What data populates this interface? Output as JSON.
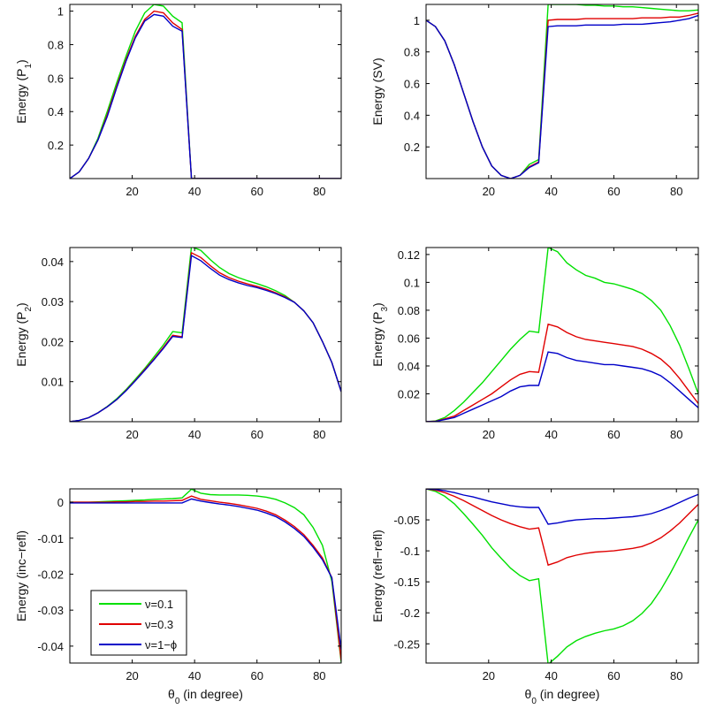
{
  "legend": {
    "placement": "lower-left of bottom-left panel",
    "entries": [
      {
        "label": "ν=0.1",
        "color": "#00e000"
      },
      {
        "label": "ν=0.3",
        "color": "#e00000"
      },
      {
        "label": "ν=1−ϕ",
        "color": "#0000c8"
      }
    ]
  },
  "chart_data": [
    {
      "type": "line",
      "ylabel": {
        "text": "Energy (P",
        "sub": "1",
        "end": ")"
      },
      "xlabel": null,
      "xlim": [
        0,
        87
      ],
      "ylim": [
        0,
        1.04
      ],
      "xticks": [
        20,
        40,
        60,
        80
      ],
      "yticks": [
        0.2,
        0.4,
        0.6,
        0.8,
        1
      ],
      "yticklabels": [
        "0.2",
        "0.4",
        "0.6",
        "0.8",
        "1"
      ],
      "x": [
        0,
        3,
        6,
        9,
        12,
        15,
        18,
        21,
        24,
        27,
        30,
        33,
        36,
        39,
        42,
        45,
        48,
        51,
        54,
        57,
        60,
        63,
        66,
        69,
        72,
        75,
        78,
        81,
        84,
        87
      ],
      "series": [
        {
          "name": "ν=0.1",
          "color": "#00e000",
          "values": [
            0,
            0.04,
            0.12,
            0.24,
            0.4,
            0.57,
            0.73,
            0.88,
            0.99,
            1.04,
            1.03,
            0.97,
            0.93,
            0,
            0,
            0,
            0,
            0,
            0,
            0,
            0,
            0,
            0,
            0,
            0,
            0,
            0,
            0,
            0,
            0
          ]
        },
        {
          "name": "ν=0.3",
          "color": "#e00000",
          "values": [
            0,
            0.04,
            0.12,
            0.23,
            0.38,
            0.55,
            0.71,
            0.85,
            0.95,
            1.0,
            0.99,
            0.93,
            0.89,
            0,
            0,
            0,
            0,
            0,
            0,
            0,
            0,
            0,
            0,
            0,
            0,
            0,
            0,
            0,
            0,
            0
          ]
        },
        {
          "name": "ν=1−ϕ",
          "color": "#0000c8",
          "values": [
            0,
            0.04,
            0.12,
            0.23,
            0.37,
            0.54,
            0.7,
            0.84,
            0.94,
            0.98,
            0.97,
            0.91,
            0.88,
            0,
            0,
            0,
            0,
            0,
            0,
            0,
            0,
            0,
            0,
            0,
            0,
            0,
            0,
            0,
            0,
            0
          ]
        }
      ]
    },
    {
      "type": "line",
      "ylabel": {
        "text": "Energy (SV)",
        "sub": "",
        "end": ""
      },
      "xlabel": null,
      "xlim": [
        0,
        87
      ],
      "ylim": [
        0,
        1.1
      ],
      "xticks": [
        20,
        40,
        60,
        80
      ],
      "yticks": [
        0.2,
        0.4,
        0.6,
        0.8,
        1
      ],
      "yticklabels": [
        "0.2",
        "0.4",
        "0.6",
        "0.8",
        "1"
      ],
      "x": [
        0,
        3,
        6,
        9,
        12,
        15,
        18,
        21,
        24,
        27,
        30,
        33,
        36,
        39,
        42,
        45,
        48,
        51,
        54,
        57,
        60,
        63,
        66,
        69,
        72,
        75,
        78,
        81,
        84,
        87
      ],
      "series": [
        {
          "name": "ν=0.1",
          "color": "#00e000",
          "values": [
            1.0,
            0.96,
            0.87,
            0.72,
            0.54,
            0.36,
            0.2,
            0.08,
            0.02,
            0.0,
            0.02,
            0.09,
            0.12,
            1.1,
            1.1,
            1.1,
            1.1,
            1.095,
            1.095,
            1.09,
            1.09,
            1.085,
            1.085,
            1.08,
            1.075,
            1.07,
            1.065,
            1.06,
            1.06,
            1.065
          ]
        },
        {
          "name": "ν=0.3",
          "color": "#e00000",
          "values": [
            1.0,
            0.96,
            0.87,
            0.72,
            0.54,
            0.36,
            0.2,
            0.08,
            0.02,
            0.0,
            0.02,
            0.075,
            0.105,
            1.0,
            1.005,
            1.005,
            1.005,
            1.01,
            1.01,
            1.01,
            1.01,
            1.01,
            1.01,
            1.015,
            1.015,
            1.015,
            1.02,
            1.02,
            1.03,
            1.045
          ]
        },
        {
          "name": "ν=1−ϕ",
          "color": "#0000c8",
          "values": [
            1.0,
            0.96,
            0.87,
            0.72,
            0.54,
            0.36,
            0.2,
            0.08,
            0.02,
            0.0,
            0.02,
            0.07,
            0.1,
            0.96,
            0.965,
            0.965,
            0.965,
            0.97,
            0.97,
            0.97,
            0.97,
            0.975,
            0.975,
            0.975,
            0.98,
            0.985,
            0.99,
            1.0,
            1.01,
            1.03
          ]
        }
      ]
    },
    {
      "type": "line",
      "ylabel": {
        "text": "Energy (P",
        "sub": "2",
        "end": ")"
      },
      "xlabel": null,
      "xlim": [
        0,
        87
      ],
      "ylim": [
        0,
        0.0435
      ],
      "xticks": [
        20,
        40,
        60,
        80
      ],
      "yticks": [
        0.01,
        0.02,
        0.03,
        0.04
      ],
      "yticklabels": [
        "0.01",
        "0.02",
        "0.03",
        "0.04"
      ],
      "x": [
        0,
        3,
        6,
        9,
        12,
        15,
        18,
        21,
        24,
        27,
        30,
        33,
        36,
        39,
        42,
        45,
        48,
        51,
        54,
        57,
        60,
        63,
        66,
        69,
        72,
        75,
        78,
        81,
        84,
        87
      ],
      "series": [
        {
          "name": "ν=0.1",
          "color": "#00e000",
          "values": [
            0,
            0.0003,
            0.001,
            0.0022,
            0.0038,
            0.0057,
            0.008,
            0.0106,
            0.0133,
            0.0162,
            0.0192,
            0.0225,
            0.0222,
            0.0437,
            0.0428,
            0.0405,
            0.0385,
            0.037,
            0.036,
            0.0352,
            0.0345,
            0.0337,
            0.0327,
            0.0315,
            0.0298,
            0.0277,
            0.0247,
            0.02,
            0.0148,
            0.0075
          ]
        },
        {
          "name": "ν=0.3",
          "color": "#e00000",
          "values": [
            0,
            0.0003,
            0.001,
            0.0022,
            0.0037,
            0.0055,
            0.0078,
            0.0103,
            0.013,
            0.0157,
            0.0186,
            0.0216,
            0.0212,
            0.0422,
            0.041,
            0.039,
            0.0372,
            0.036,
            0.0351,
            0.0344,
            0.0338,
            0.0331,
            0.0322,
            0.0312,
            0.0298,
            0.0277,
            0.0247,
            0.02,
            0.0148,
            0.0075
          ]
        },
        {
          "name": "ν=1−ϕ",
          "color": "#0000c8",
          "values": [
            0,
            0.0003,
            0.001,
            0.0022,
            0.0037,
            0.0055,
            0.0077,
            0.0102,
            0.0128,
            0.0155,
            0.0183,
            0.0213,
            0.021,
            0.0415,
            0.0402,
            0.0383,
            0.0366,
            0.0355,
            0.0347,
            0.034,
            0.0335,
            0.0328,
            0.032,
            0.031,
            0.0298,
            0.0277,
            0.0247,
            0.02,
            0.0148,
            0.0075
          ]
        }
      ]
    },
    {
      "type": "line",
      "ylabel": {
        "text": "Energy (P",
        "sub": "3",
        "end": ")"
      },
      "xlabel": null,
      "xlim": [
        0,
        87
      ],
      "ylim": [
        0,
        0.125
      ],
      "xticks": [
        20,
        40,
        60,
        80
      ],
      "yticks": [
        0.02,
        0.04,
        0.06,
        0.08,
        0.1,
        0.12
      ],
      "yticklabels": [
        "0.02",
        "0.04",
        "0.06",
        "0.08",
        "0.1",
        "0.12"
      ],
      "x": [
        0,
        3,
        6,
        9,
        12,
        15,
        18,
        21,
        24,
        27,
        30,
        33,
        36,
        39,
        42,
        45,
        48,
        51,
        54,
        57,
        60,
        63,
        66,
        69,
        72,
        75,
        78,
        81,
        84,
        87
      ],
      "series": [
        {
          "name": "ν=0.1",
          "color": "#00e000",
          "values": [
            0,
            0.0005,
            0.003,
            0.008,
            0.014,
            0.021,
            0.028,
            0.036,
            0.044,
            0.052,
            0.059,
            0.065,
            0.064,
            0.125,
            0.122,
            0.114,
            0.109,
            0.105,
            0.103,
            0.1,
            0.099,
            0.097,
            0.095,
            0.092,
            0.087,
            0.08,
            0.069,
            0.055,
            0.038,
            0.02
          ]
        },
        {
          "name": "ν=0.3",
          "color": "#e00000",
          "values": [
            0,
            0.0003,
            0.002,
            0.004,
            0.008,
            0.012,
            0.016,
            0.02,
            0.025,
            0.03,
            0.034,
            0.036,
            0.0355,
            0.07,
            0.068,
            0.064,
            0.061,
            0.059,
            0.058,
            0.057,
            0.056,
            0.055,
            0.054,
            0.052,
            0.049,
            0.045,
            0.039,
            0.031,
            0.022,
            0.013
          ]
        },
        {
          "name": "ν=1−ϕ",
          "color": "#0000c8",
          "values": [
            0,
            0.0002,
            0.0015,
            0.003,
            0.006,
            0.009,
            0.012,
            0.015,
            0.018,
            0.022,
            0.025,
            0.026,
            0.026,
            0.05,
            0.049,
            0.046,
            0.044,
            0.043,
            0.042,
            0.041,
            0.041,
            0.04,
            0.039,
            0.038,
            0.036,
            0.033,
            0.028,
            0.022,
            0.016,
            0.01
          ]
        }
      ]
    },
    {
      "type": "line",
      "ylabel": {
        "text": "Energy (inc−refl)",
        "sub": "",
        "end": ""
      },
      "xlabel": {
        "text": "θ",
        "sub": "0",
        "end": " (in degree)"
      },
      "xlim": [
        0,
        87
      ],
      "ylim": [
        -0.0447,
        0.0037
      ],
      "xticks": [
        20,
        40,
        60,
        80
      ],
      "yticks": [
        -0.04,
        -0.03,
        -0.02,
        -0.01,
        0
      ],
      "yticklabels": [
        "-0.04",
        "-0.03",
        "-0.02",
        "-0.01",
        "0"
      ],
      "x": [
        0,
        3,
        6,
        9,
        12,
        15,
        18,
        21,
        24,
        27,
        30,
        33,
        36,
        39,
        42,
        45,
        48,
        51,
        54,
        57,
        60,
        63,
        66,
        69,
        72,
        75,
        78,
        81,
        84,
        87
      ],
      "series": [
        {
          "name": "ν=0.1",
          "color": "#00e000",
          "values": [
            0,
            0,
            0,
            0.0001,
            0.0002,
            0.0003,
            0.0004,
            0.0005,
            0.0006,
            0.0008,
            0.0009,
            0.001,
            0.0012,
            0.0036,
            0.0025,
            0.0021,
            0.002,
            0.002,
            0.002,
            0.0019,
            0.0017,
            0.0014,
            0.0008,
            -0.0002,
            -0.0015,
            -0.0035,
            -0.007,
            -0.012,
            -0.022,
            -0.0445
          ]
        },
        {
          "name": "ν=0.3",
          "color": "#e00000",
          "values": [
            0,
            0,
            0,
            0,
            0,
            0.0001,
            0.0001,
            0.0002,
            0.0002,
            0.0003,
            0.0003,
            0.0004,
            0.0005,
            0.0017,
            0.0008,
            0.0004,
            0,
            -0.0003,
            -0.0007,
            -0.0012,
            -0.0017,
            -0.0025,
            -0.0035,
            -0.005,
            -0.0068,
            -0.009,
            -0.012,
            -0.0155,
            -0.021,
            -0.044
          ]
        },
        {
          "name": "ν=1−ϕ",
          "color": "#0000c8",
          "values": [
            -0.0002,
            -0.0002,
            -0.0002,
            -0.0002,
            -0.0002,
            -0.0002,
            -0.0002,
            -0.0002,
            -0.0002,
            -0.0002,
            -0.0002,
            -0.0002,
            -0.0002,
            0.0009,
            0.0003,
            -0.0001,
            -0.0005,
            -0.0008,
            -0.0012,
            -0.0017,
            -0.0022,
            -0.003,
            -0.004,
            -0.0055,
            -0.0073,
            -0.0095,
            -0.0125,
            -0.016,
            -0.021,
            -0.041
          ]
        }
      ]
    },
    {
      "type": "line",
      "ylabel": {
        "text": "Energy (refl−refl)",
        "sub": "",
        "end": ""
      },
      "xlabel": {
        "text": "θ",
        "sub": "0",
        "end": " (in degree)"
      },
      "xlim": [
        0,
        87
      ],
      "ylim": [
        -0.281,
        0
      ],
      "xticks": [
        20,
        40,
        60,
        80
      ],
      "yticks": [
        -0.25,
        -0.2,
        -0.15,
        -0.1,
        -0.05
      ],
      "yticklabels": [
        "-0.25",
        "-0.2",
        "-0.15",
        "-0.1",
        "-0.05"
      ],
      "x": [
        0,
        3,
        6,
        9,
        12,
        15,
        18,
        21,
        24,
        27,
        30,
        33,
        36,
        39,
        42,
        45,
        48,
        51,
        54,
        57,
        60,
        63,
        66,
        69,
        72,
        75,
        78,
        81,
        84,
        87
      ],
      "series": [
        {
          "name": "ν=0.1",
          "color": "#00e000",
          "values": [
            0,
            -0.004,
            -0.012,
            -0.024,
            -0.04,
            -0.057,
            -0.075,
            -0.095,
            -0.112,
            -0.128,
            -0.14,
            -0.148,
            -0.145,
            -0.283,
            -0.27,
            -0.255,
            -0.245,
            -0.238,
            -0.233,
            -0.229,
            -0.226,
            -0.221,
            -0.213,
            -0.201,
            -0.185,
            -0.163,
            -0.137,
            -0.108,
            -0.078,
            -0.05
          ]
        },
        {
          "name": "ν=0.3",
          "color": "#e00000",
          "values": [
            0,
            -0.002,
            -0.006,
            -0.012,
            -0.019,
            -0.027,
            -0.035,
            -0.043,
            -0.05,
            -0.056,
            -0.061,
            -0.065,
            -0.063,
            -0.123,
            -0.118,
            -0.111,
            -0.107,
            -0.104,
            -0.102,
            -0.101,
            -0.1,
            -0.098,
            -0.096,
            -0.093,
            -0.087,
            -0.079,
            -0.068,
            -0.055,
            -0.04,
            -0.025
          ]
        },
        {
          "name": "ν=1−ϕ",
          "color": "#0000c8",
          "values": [
            0,
            -0.001,
            -0.003,
            -0.006,
            -0.01,
            -0.013,
            -0.017,
            -0.021,
            -0.024,
            -0.027,
            -0.029,
            -0.03,
            -0.03,
            -0.057,
            -0.055,
            -0.052,
            -0.05,
            -0.049,
            -0.048,
            -0.048,
            -0.047,
            -0.046,
            -0.045,
            -0.043,
            -0.04,
            -0.035,
            -0.029,
            -0.022,
            -0.015,
            -0.009
          ]
        }
      ]
    }
  ]
}
